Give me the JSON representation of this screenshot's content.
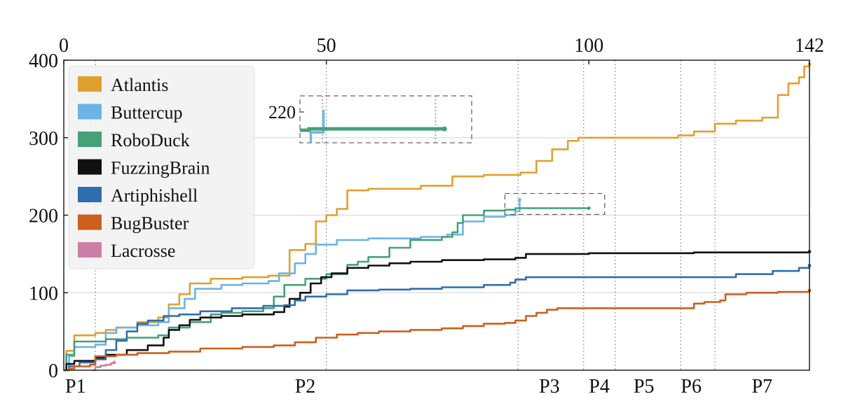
{
  "chart_data": {
    "type": "line",
    "title": "",
    "xlabel": "",
    "ylabel": "",
    "xlim": [
      0,
      142
    ],
    "ylim": [
      0,
      400
    ],
    "x_ticks": [
      0,
      50,
      100,
      142
    ],
    "x_tick_labels": [
      "0",
      "50",
      "100",
      "142"
    ],
    "y_ticks": [
      0,
      100,
      200,
      300,
      400
    ],
    "y_tick_labels": [
      "0",
      "100",
      "200",
      "300",
      "400"
    ],
    "grid": "horizontal",
    "x_axis_position": "top",
    "legend_position": "upper-left",
    "phases": [
      {
        "label": "P1",
        "x": 6
      },
      {
        "label": "P2",
        "x": 50
      },
      {
        "label": "P3",
        "x": 86.5
      },
      {
        "label": "P4",
        "x": 99
      },
      {
        "label": "P5",
        "x": 105
      },
      {
        "label": "P6",
        "x": 117.5
      },
      {
        "label": "P7",
        "x": 124
      }
    ],
    "series": [
      {
        "name": "Atlantis",
        "color": "#E0A030",
        "points": [
          [
            0,
            0
          ],
          [
            0.5,
            25
          ],
          [
            2,
            45
          ],
          [
            6,
            48
          ],
          [
            8,
            52
          ],
          [
            10,
            55
          ],
          [
            14,
            62
          ],
          [
            18,
            68
          ],
          [
            20,
            85
          ],
          [
            22,
            98
          ],
          [
            24,
            112
          ],
          [
            28,
            118
          ],
          [
            34,
            120
          ],
          [
            39,
            122
          ],
          [
            43,
            155
          ],
          [
            46,
            163
          ],
          [
            48,
            192
          ],
          [
            50,
            200
          ],
          [
            52,
            208
          ],
          [
            54,
            232
          ],
          [
            58,
            234
          ],
          [
            68,
            238
          ],
          [
            74,
            250
          ],
          [
            80,
            252
          ],
          [
            87,
            255
          ],
          [
            90,
            270
          ],
          [
            93,
            285
          ],
          [
            96,
            296
          ],
          [
            98,
            300
          ],
          [
            110,
            300
          ],
          [
            117,
            303
          ],
          [
            120,
            308
          ],
          [
            124,
            318
          ],
          [
            128,
            322
          ],
          [
            133,
            326
          ],
          [
            136,
            355
          ],
          [
            138,
            370
          ],
          [
            140,
            378
          ],
          [
            141,
            392
          ],
          [
            142,
            395
          ]
        ]
      },
      {
        "name": "Buttercup",
        "color": "#6CB4E4",
        "points": [
          [
            0,
            0
          ],
          [
            1,
            18
          ],
          [
            2,
            30
          ],
          [
            6,
            33
          ],
          [
            8,
            48
          ],
          [
            10,
            55
          ],
          [
            14,
            58
          ],
          [
            18,
            62
          ],
          [
            20,
            80
          ],
          [
            23,
            92
          ],
          [
            25,
            105
          ],
          [
            30,
            110
          ],
          [
            34,
            112
          ],
          [
            39,
            115
          ],
          [
            41,
            125
          ],
          [
            44,
            138
          ],
          [
            46,
            150
          ],
          [
            48,
            162
          ],
          [
            52,
            168
          ],
          [
            58,
            170
          ],
          [
            68,
            172
          ],
          [
            73,
            175
          ],
          [
            76,
            192
          ],
          [
            80,
            198
          ],
          [
            84,
            200
          ],
          [
            86,
            205
          ],
          [
            86.8,
            220
          ]
        ]
      },
      {
        "name": "RoboDuck",
        "color": "#46A07A",
        "points": [
          [
            0,
            0
          ],
          [
            0.5,
            20
          ],
          [
            2,
            37
          ],
          [
            8,
            40
          ],
          [
            12,
            42
          ],
          [
            18,
            45
          ],
          [
            20,
            55
          ],
          [
            24,
            62
          ],
          [
            28,
            72
          ],
          [
            30,
            74
          ],
          [
            34,
            76
          ],
          [
            38,
            80
          ],
          [
            40,
            95
          ],
          [
            42,
            110
          ],
          [
            46,
            118
          ],
          [
            50,
            124
          ],
          [
            54,
            136
          ],
          [
            56,
            140
          ],
          [
            58,
            146
          ],
          [
            62,
            158
          ],
          [
            66,
            168
          ],
          [
            72,
            172
          ],
          [
            74,
            178
          ],
          [
            75,
            190
          ],
          [
            76,
            200
          ],
          [
            80,
            206
          ],
          [
            84,
            207
          ],
          [
            86,
            209
          ],
          [
            88,
            209
          ],
          [
            92,
            209
          ],
          [
            100,
            209
          ]
        ]
      },
      {
        "name": "FuzzingBrain",
        "color": "#111111",
        "points": [
          [
            0,
            0
          ],
          [
            0.5,
            8
          ],
          [
            2,
            12
          ],
          [
            6,
            16
          ],
          [
            8,
            20
          ],
          [
            12,
            26
          ],
          [
            16,
            32
          ],
          [
            19,
            42
          ],
          [
            20,
            52
          ],
          [
            22,
            58
          ],
          [
            24,
            65
          ],
          [
            26,
            68
          ],
          [
            30,
            70
          ],
          [
            34,
            72
          ],
          [
            40,
            75
          ],
          [
            42,
            82
          ],
          [
            43,
            92
          ],
          [
            45,
            100
          ],
          [
            47,
            112
          ],
          [
            49,
            120
          ],
          [
            51,
            125
          ],
          [
            54,
            132
          ],
          [
            58,
            135
          ],
          [
            62,
            138
          ],
          [
            66,
            140
          ],
          [
            72,
            142
          ],
          [
            80,
            143
          ],
          [
            86,
            145
          ],
          [
            88,
            150
          ],
          [
            100,
            151
          ],
          [
            120,
            152
          ],
          [
            142,
            153
          ]
        ]
      },
      {
        "name": "Artiphishell",
        "color": "#2F6EAE",
        "points": [
          [
            0,
            0
          ],
          [
            1,
            5
          ],
          [
            3,
            10
          ],
          [
            6,
            14
          ],
          [
            8,
            26
          ],
          [
            10,
            38
          ],
          [
            12,
            50
          ],
          [
            14,
            60
          ],
          [
            16,
            64
          ],
          [
            19,
            70
          ],
          [
            22,
            72
          ],
          [
            26,
            76
          ],
          [
            32,
            80
          ],
          [
            38,
            83
          ],
          [
            42,
            84
          ],
          [
            44,
            90
          ],
          [
            46,
            95
          ],
          [
            50,
            98
          ],
          [
            54,
            103
          ],
          [
            60,
            104
          ],
          [
            66,
            105
          ],
          [
            72,
            107
          ],
          [
            80,
            110
          ],
          [
            85,
            113
          ],
          [
            86,
            117
          ],
          [
            88,
            120
          ],
          [
            100,
            120
          ],
          [
            125,
            120
          ],
          [
            128,
            124
          ],
          [
            135,
            128
          ],
          [
            140,
            132
          ],
          [
            142,
            135
          ]
        ]
      },
      {
        "name": "BugBuster",
        "color": "#CC5F1E",
        "points": [
          [
            0,
            0
          ],
          [
            1,
            2
          ],
          [
            2,
            5
          ],
          [
            5,
            7
          ],
          [
            6,
            18
          ],
          [
            10,
            20
          ],
          [
            14,
            22
          ],
          [
            20,
            24
          ],
          [
            26,
            28
          ],
          [
            34,
            30
          ],
          [
            40,
            32
          ],
          [
            44,
            36
          ],
          [
            48,
            42
          ],
          [
            52,
            46
          ],
          [
            56,
            48
          ],
          [
            60,
            50
          ],
          [
            66,
            52
          ],
          [
            72,
            54
          ],
          [
            76,
            57
          ],
          [
            80,
            60
          ],
          [
            84,
            61
          ],
          [
            86,
            64
          ],
          [
            88,
            70
          ],
          [
            90,
            74
          ],
          [
            92,
            78
          ],
          [
            94,
            80
          ],
          [
            104,
            80
          ],
          [
            118,
            80
          ],
          [
            120,
            86
          ],
          [
            122,
            88
          ],
          [
            125,
            90
          ],
          [
            126,
            98
          ],
          [
            130,
            100
          ],
          [
            136,
            101
          ],
          [
            142,
            103
          ]
        ]
      },
      {
        "name": "Lacrosse",
        "color": "#CC7FA6",
        "points": [
          [
            5.5,
            0
          ],
          [
            6,
            4
          ],
          [
            7,
            6
          ],
          [
            8,
            7
          ],
          [
            8.5,
            7
          ],
          [
            9,
            9
          ],
          [
            9.6,
            10
          ]
        ]
      }
    ],
    "zoom_box": {
      "label": "220",
      "region": {
        "x": [
          84,
          103
        ],
        "y": [
          201,
          228
        ]
      },
      "inset_lines": {
        "RoboDuck": {
          "x": [
            84,
            100
          ],
          "y": 209
        },
        "Buttercup": {
          "x": [
            84,
            86.8
          ],
          "y_end": 220
        }
      }
    }
  }
}
